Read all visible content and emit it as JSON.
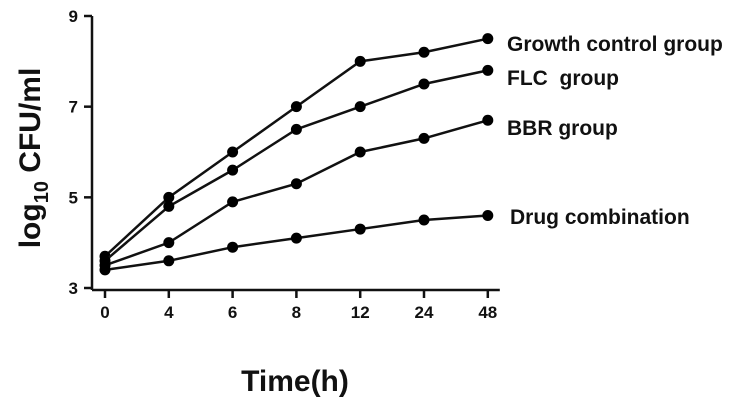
{
  "chart_data": {
    "type": "line",
    "xlabel": "Time(h)",
    "ylabel_main": "log",
    "ylabel_sub": "10",
    "ylabel_rest": " CFU/ml",
    "categories": [
      "0",
      "4",
      "6",
      "8",
      "12",
      "24",
      "48"
    ],
    "ylim": [
      3,
      9
    ],
    "yticks": [
      "3",
      "5",
      "7",
      "9"
    ],
    "grid": false,
    "legend": "labels at line ends (right)",
    "series": [
      {
        "name": "Growth control group",
        "values": [
          3.7,
          5.0,
          6.0,
          7.0,
          8.0,
          8.2,
          8.5
        ]
      },
      {
        "name": "FLC  group",
        "values": [
          3.6,
          4.8,
          5.6,
          6.5,
          7.0,
          7.5,
          7.8
        ]
      },
      {
        "name": "BBR group",
        "values": [
          3.5,
          4.0,
          4.9,
          5.3,
          6.0,
          6.3,
          6.7
        ]
      },
      {
        "name": "Drug combination",
        "values": [
          3.4,
          3.6,
          3.9,
          4.1,
          4.3,
          4.5,
          4.6
        ]
      }
    ],
    "colors": {
      "line": "#111111",
      "marker": "#000000",
      "axis": "#111111"
    }
  }
}
